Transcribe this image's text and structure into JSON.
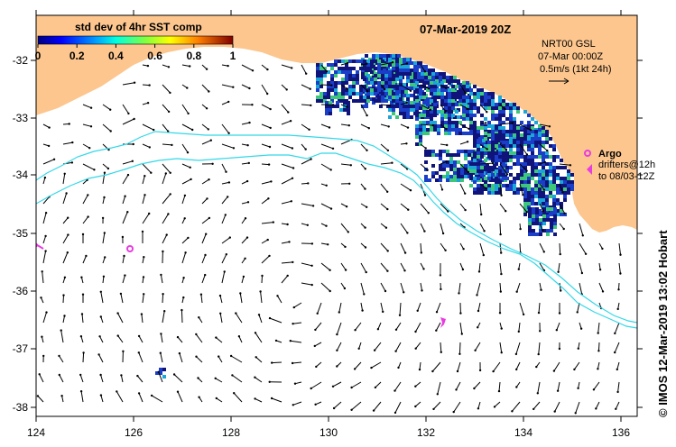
{
  "title": "07-Mar-2019 20Z",
  "colorbar": {
    "label": "std dev of 4hr SST comp",
    "ticks": [
      "0",
      "0.2",
      "0.4",
      "0.6",
      "0.8",
      "1"
    ]
  },
  "current_info": {
    "line1": "NRT00 GSL",
    "line2": "07-Mar 00:00Z",
    "line3": "0.5m/s (1kt 24h)"
  },
  "argo": {
    "label": "Argo",
    "drifters_line1": "drifters@12h",
    "drifters_line2": "to 08/03-12Z"
  },
  "credit": "© IMOS 12-Mar-2019 13:02 Hobart",
  "axes": {
    "lon_labels": [
      "124",
      "126",
      "128",
      "130",
      "132",
      "134",
      "136"
    ],
    "lat_labels": [
      "-32",
      "-33",
      "-34",
      "-35",
      "-36",
      "-37",
      "-38"
    ]
  },
  "colors": {
    "land": "#fcc68e",
    "contour": "#33d8e8",
    "argo": "#e83ce0",
    "sst_dark": "#10147a",
    "sst_mid": "#1a3ec8",
    "sst_cyan": "#1aa6d8",
    "sst_green": "#3cc878"
  }
}
